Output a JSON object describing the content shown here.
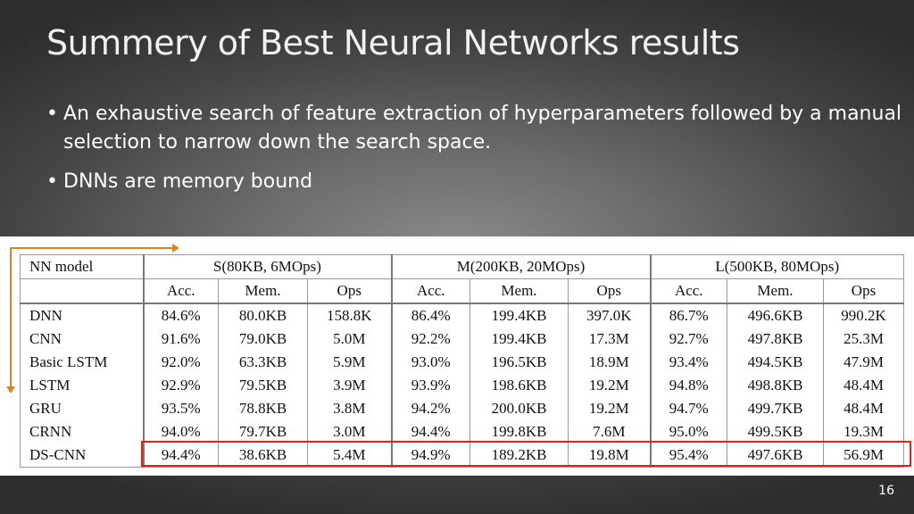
{
  "slide": {
    "title": "Summery of Best Neural Networks results",
    "bullets": [
      "An exhaustive search of feature extraction of hyperparameters followed by a manual selection to narrow down the search space.",
      "DNNs are memory bound"
    ],
    "bullet_symbol": "•",
    "page_number": "16"
  },
  "table": {
    "model_header": "NN model",
    "groups": [
      "S(80KB, 6MOps)",
      "M(200KB, 20MOps)",
      "L(500KB, 80MOps)"
    ],
    "subheaders": [
      "Acc.",
      "Mem.",
      "Ops",
      "Acc.",
      "Mem.",
      "Ops",
      "Acc.",
      "Mem.",
      "Ops"
    ],
    "rows": [
      {
        "model": "DNN",
        "cells": [
          "84.6%",
          "80.0KB",
          "158.8K",
          "86.4%",
          "199.4KB",
          "397.0K",
          "86.7%",
          "496.6KB",
          "990.2K"
        ]
      },
      {
        "model": "CNN",
        "cells": [
          "91.6%",
          "79.0KB",
          "5.0M",
          "92.2%",
          "199.4KB",
          "17.3M",
          "92.7%",
          "497.8KB",
          "25.3M"
        ]
      },
      {
        "model": "Basic LSTM",
        "cells": [
          "92.0%",
          "63.3KB",
          "5.9M",
          "93.0%",
          "196.5KB",
          "18.9M",
          "93.4%",
          "494.5KB",
          "47.9M"
        ]
      },
      {
        "model": "LSTM",
        "cells": [
          "92.9%",
          "79.5KB",
          "3.9M",
          "93.9%",
          "198.6KB",
          "19.2M",
          "94.8%",
          "498.8KB",
          "48.4M"
        ]
      },
      {
        "model": "GRU",
        "cells": [
          "93.5%",
          "78.8KB",
          "3.8M",
          "94.2%",
          "200.0KB",
          "19.2M",
          "94.7%",
          "499.7KB",
          "48.4M"
        ]
      },
      {
        "model": "CRNN",
        "cells": [
          "94.0%",
          "79.7KB",
          "3.0M",
          "94.4%",
          "199.8KB",
          "7.6M",
          "95.0%",
          "499.5KB",
          "19.3M"
        ]
      },
      {
        "model": "DS-CNN",
        "cells": [
          "94.4%",
          "38.6KB",
          "5.4M",
          "94.9%",
          "189.2KB",
          "19.8M",
          "95.4%",
          "497.6KB",
          "56.9M"
        ]
      }
    ],
    "highlighted_row": "DS-CNN",
    "highlight_color": "#e02020",
    "arrow_color": "#e0821e"
  }
}
